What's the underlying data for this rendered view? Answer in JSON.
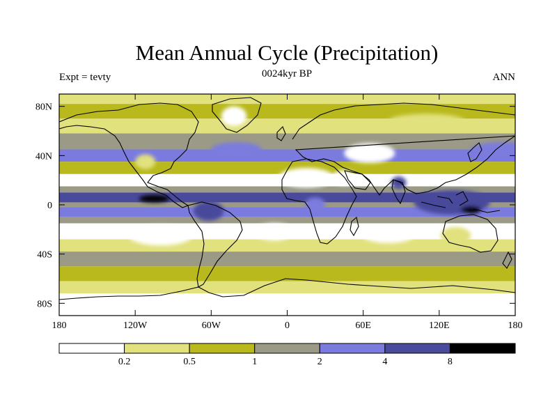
{
  "title": "Mean Annual Cycle (Precipitation)",
  "subtitle_center": "0024kyr BP",
  "subtitle_left": "Expt = tevty",
  "subtitle_right": "ANN",
  "colors": {
    "levels": [
      "#ffffff",
      "#e1e17e",
      "#b9b91d",
      "#9a9a86",
      "#7b7bdf",
      "#4a4a9c",
      "#000000"
    ],
    "coast": "#000000",
    "frame": "#000000"
  },
  "chart_data": {
    "type": "heatmap",
    "title": "Mean Annual Cycle (Precipitation)",
    "x_ticks": [
      "180",
      "120W",
      "60W",
      "0",
      "60E",
      "120E",
      "180"
    ],
    "x_values": [
      -180,
      -120,
      -60,
      0,
      60,
      120,
      180
    ],
    "y_ticks": [
      "80N",
      "40N",
      "0",
      "40S",
      "80S"
    ],
    "y_values": [
      80,
      40,
      0,
      -40,
      -80
    ],
    "xlim": [
      -180,
      180
    ],
    "ylim": [
      -90,
      90
    ],
    "colorbar": {
      "labels": [
        "0.2",
        "0.5",
        "1",
        "2",
        "4",
        "8"
      ],
      "boundaries": [
        0.2,
        0.5,
        1,
        2,
        4,
        8
      ]
    },
    "zonal_pattern": [
      {
        "lat_min": 82,
        "lat_max": 90,
        "level": 1
      },
      {
        "lat_min": 70,
        "lat_max": 82,
        "level": 2
      },
      {
        "lat_min": 58,
        "lat_max": 70,
        "level": 1
      },
      {
        "lat_min": 45,
        "lat_max": 58,
        "level": 3
      },
      {
        "lat_min": 35,
        "lat_max": 45,
        "level": 4
      },
      {
        "lat_min": 25,
        "lat_max": 35,
        "level": 2
      },
      {
        "lat_min": 15,
        "lat_max": 25,
        "level": 0
      },
      {
        "lat_min": 10,
        "lat_max": 15,
        "level": 3
      },
      {
        "lat_min": 2,
        "lat_max": 10,
        "level": 5
      },
      {
        "lat_min": -2,
        "lat_max": 2,
        "level": 3
      },
      {
        "lat_min": -10,
        "lat_max": -2,
        "level": 4
      },
      {
        "lat_min": -15,
        "lat_max": -10,
        "level": 3
      },
      {
        "lat_min": -28,
        "lat_max": -15,
        "level": 0
      },
      {
        "lat_min": -38,
        "lat_max": -28,
        "level": 1
      },
      {
        "lat_min": -50,
        "lat_max": -38,
        "level": 3
      },
      {
        "lat_min": -62,
        "lat_max": -50,
        "level": 2
      },
      {
        "lat_min": -72,
        "lat_max": -62,
        "level": 1
      },
      {
        "lat_min": -90,
        "lat_max": -72,
        "level": 0
      }
    ],
    "regions": [
      {
        "name": "tropical-east-pacific-max",
        "lon": -105,
        "lat": 5,
        "rlon": 12,
        "rlat": 3,
        "level": 6
      },
      {
        "name": "west-pacific-warm-pool",
        "lon": 130,
        "lat": 2,
        "rlon": 30,
        "rlat": 10,
        "level": 5
      },
      {
        "name": "maritime-continent-max",
        "lon": 145,
        "lat": -4,
        "rlon": 8,
        "rlat": 3,
        "level": 6
      },
      {
        "name": "sahara",
        "lon": 15,
        "lat": 22,
        "rlon": 22,
        "rlat": 8,
        "level": 0
      },
      {
        "name": "arabia",
        "lon": 45,
        "lat": 22,
        "rlon": 10,
        "rlat": 6,
        "level": 0
      },
      {
        "name": "central-asia",
        "lon": 65,
        "lat": 42,
        "rlon": 20,
        "rlat": 8,
        "level": 0
      },
      {
        "name": "north-america-west",
        "lon": -112,
        "lat": 35,
        "rlon": 8,
        "rlat": 6,
        "level": 1
      },
      {
        "name": "south-atlantic-high",
        "lon": -10,
        "lat": -22,
        "rlon": 15,
        "rlat": 7,
        "level": 0
      },
      {
        "name": "south-pacific-high",
        "lon": -100,
        "lat": -25,
        "rlon": 25,
        "rlat": 8,
        "level": 0
      },
      {
        "name": "indian-ocean-south",
        "lon": 80,
        "lat": -25,
        "rlon": 20,
        "rlat": 6,
        "level": 0
      },
      {
        "name": "amazon",
        "lon": -62,
        "lat": -5,
        "rlon": 12,
        "rlat": 8,
        "level": 5
      },
      {
        "name": "congo",
        "lon": 22,
        "lat": 0,
        "rlon": 8,
        "rlat": 6,
        "level": 4
      },
      {
        "name": "north-atlantic-storm",
        "lon": -40,
        "lat": 45,
        "rlon": 20,
        "rlat": 6,
        "level": 4
      },
      {
        "name": "north-pacific-storm",
        "lon": 170,
        "lat": 45,
        "rlon": 25,
        "rlat": 6,
        "level": 4
      },
      {
        "name": "india-monsoon",
        "lon": 88,
        "lat": 18,
        "rlon": 6,
        "rlat": 5,
        "level": 5
      },
      {
        "name": "greenland",
        "lon": -42,
        "lat": 72,
        "rlon": 10,
        "rlat": 8,
        "level": 0
      },
      {
        "name": "australia",
        "lon": 133,
        "lat": -25,
        "rlon": 12,
        "rlat": 7,
        "level": 1
      },
      {
        "name": "siberia-dry",
        "lon": 110,
        "lat": 68,
        "rlon": 30,
        "rlat": 6,
        "level": 1
      }
    ]
  }
}
